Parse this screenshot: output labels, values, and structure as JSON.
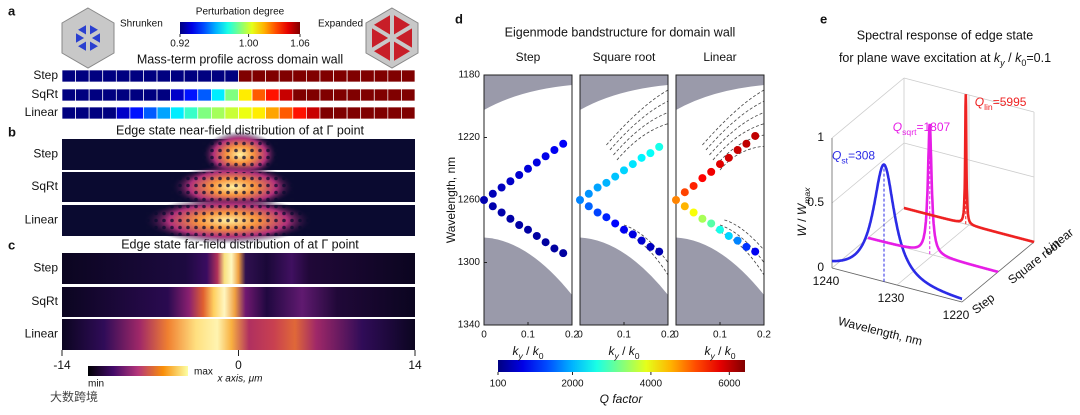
{
  "panel_labels": [
    "a",
    "b",
    "c",
    "d",
    "e"
  ],
  "panel_a": {
    "shrunken": "Shrunken",
    "expanded": "Expanded",
    "colorbar": {
      "title": "Perturbation degree",
      "clim": [
        0.92,
        1.06
      ],
      "ticks": [
        {
          "value": 0.92,
          "label": "0.92"
        },
        {
          "value": 1.0,
          "label": "1.00"
        },
        {
          "value": 1.06,
          "label": "1.06"
        }
      ]
    },
    "title": "Mass-term profile across domain wall",
    "rows": [
      {
        "name": "Step",
        "values": [
          0.92,
          0.92,
          0.92,
          0.92,
          0.92,
          0.92,
          0.92,
          0.92,
          0.92,
          0.92,
          0.92,
          0.92,
          0.92,
          1.06,
          1.06,
          1.06,
          1.06,
          1.06,
          1.06,
          1.06,
          1.06,
          1.06,
          1.06,
          1.06,
          1.06,
          1.06
        ]
      },
      {
        "name": "SqRt",
        "values": [
          0.92,
          0.92,
          0.92,
          0.92,
          0.92,
          0.92,
          0.92,
          0.92,
          0.93,
          0.94,
          0.95,
          0.97,
          0.99,
          1.01,
          1.03,
          1.04,
          1.05,
          1.06,
          1.06,
          1.06,
          1.06,
          1.06,
          1.06,
          1.06,
          1.06,
          1.06
        ]
      },
      {
        "name": "Linear",
        "values": [
          0.92,
          0.92,
          0.92,
          0.92,
          0.93,
          0.94,
          0.95,
          0.96,
          0.97,
          0.98,
          0.99,
          0.995,
          1.0,
          1.005,
          1.01,
          1.02,
          1.03,
          1.04,
          1.05,
          1.06,
          1.06,
          1.06,
          1.06,
          1.06,
          1.06,
          1.06
        ]
      }
    ]
  },
  "panel_b": {
    "title": "Edge state near-field distribution of at Γ point",
    "rows": [
      "Step",
      "SqRt",
      "Linear"
    ]
  },
  "panel_c": {
    "title": "Edge state far-field distribution of at Γ point",
    "rows": [
      "Step",
      "SqRt",
      "Linear"
    ]
  },
  "x_axis": {
    "label": "x axis, μm",
    "xlim": [
      -14,
      14
    ],
    "xticks": [
      -14,
      0,
      14
    ]
  },
  "heat_colorbar": {
    "min": "min",
    "max": "max"
  },
  "panel_d": {
    "title": "Eigenmode bandstructure for domain wall",
    "ylabel": "Wavelength, nm",
    "ylim": [
      1180,
      1340
    ],
    "yticks": [
      1180,
      1220,
      1260,
      1300,
      1340
    ],
    "xlim": [
      0,
      0.2
    ],
    "xticks": [
      0,
      0.1,
      0.2
    ],
    "xlabel": {
      "k1": "k",
      "s1": "y",
      "sep": " / ",
      "k2": "k",
      "s2": "0"
    },
    "colorbar": {
      "label": "Q factor",
      "clim": [
        100,
        6400
      ],
      "ticks": [
        100,
        2000,
        4000,
        6000
      ]
    },
    "subplots": [
      {
        "name": "Step",
        "x": [
          0,
          0.02,
          0.04,
          0.06,
          0.08,
          0.1,
          0.12,
          0.14,
          0.16,
          0.18,
          0.02,
          0.04,
          0.06,
          0.08,
          0.1,
          0.12,
          0.14,
          0.16,
          0.18
        ],
        "y": [
          1260,
          1256,
          1252,
          1248,
          1244,
          1240,
          1236,
          1232,
          1228,
          1224,
          1264,
          1268,
          1272,
          1276,
          1279,
          1283,
          1287,
          1291,
          1294
        ],
        "q": [
          400,
          450,
          500,
          550,
          600,
          650,
          700,
          750,
          800,
          850,
          380,
          360,
          340,
          330,
          320,
          310,
          300,
          300,
          300
        ]
      },
      {
        "name": "Square root",
        "x": [
          0,
          0.02,
          0.04,
          0.06,
          0.08,
          0.1,
          0.12,
          0.14,
          0.16,
          0.18,
          0.02,
          0.04,
          0.06,
          0.08,
          0.1,
          0.12,
          0.14,
          0.16,
          0.18
        ],
        "y": [
          1260,
          1256,
          1252,
          1249,
          1245,
          1241,
          1237,
          1233,
          1230,
          1226,
          1264,
          1268,
          1271,
          1275,
          1279,
          1282,
          1286,
          1290,
          1293
        ],
        "q": [
          1700,
          1800,
          1900,
          2000,
          2100,
          2200,
          2300,
          2400,
          2500,
          2600,
          1500,
          1300,
          1100,
          900,
          800,
          700,
          600,
          500,
          400
        ]
      },
      {
        "name": "Linear",
        "x": [
          0,
          0.02,
          0.04,
          0.06,
          0.08,
          0.1,
          0.12,
          0.14,
          0.16,
          0.18,
          0.02,
          0.04,
          0.06,
          0.08,
          0.1,
          0.12,
          0.14,
          0.16,
          0.18
        ],
        "y": [
          1260,
          1255,
          1251,
          1246,
          1242,
          1237,
          1233,
          1228,
          1224,
          1219,
          1264,
          1268,
          1272,
          1275,
          1279,
          1283,
          1286,
          1290,
          1293
        ],
        "q": [
          4800,
          5200,
          5400,
          5600,
          5700,
          5800,
          5900,
          5950,
          6000,
          6000,
          4500,
          4000,
          3500,
          3000,
          2600,
          2200,
          1700,
          1200,
          800
        ]
      }
    ]
  },
  "panel_e": {
    "title_line1": "Spectral response of edge state",
    "title_line2": "for plane wave excitation at ",
    "title_param": {
      "k1": "k",
      "s1": "y",
      "sep": " / ",
      "k2": "k",
      "s2": "0",
      "eq": "=0.1"
    },
    "zlabel": {
      "a": "W",
      "sep": " / ",
      "b": "W",
      "sub": "max"
    },
    "zlim": [
      0,
      1
    ],
    "zticks": [
      0,
      0.5,
      1
    ],
    "xlabel": "Wavelength, nm",
    "xlim": [
      1240,
      1220
    ],
    "xticks": [
      1240,
      1230,
      1220
    ],
    "depth_labels": [
      "Step",
      "Square root",
      "Linear"
    ],
    "peaks": [
      {
        "symbol": "Q",
        "sub": "st",
        "q_label": "=308",
        "q": 308,
        "center": 1232,
        "peak": 0.9,
        "color": "#2b2be6"
      },
      {
        "symbol": "Q",
        "sub": "sqrt",
        "q_label": "=1807",
        "q": 1807,
        "center": 1230.5,
        "peak": 1,
        "color": "#e61ee6"
      },
      {
        "symbol": "Q",
        "sub": "lin",
        "q_label": "=5995",
        "q": 5995,
        "center": 1230.5,
        "peak": 1,
        "color": "#ee2222"
      }
    ]
  },
  "watermark": "大数跨境"
}
